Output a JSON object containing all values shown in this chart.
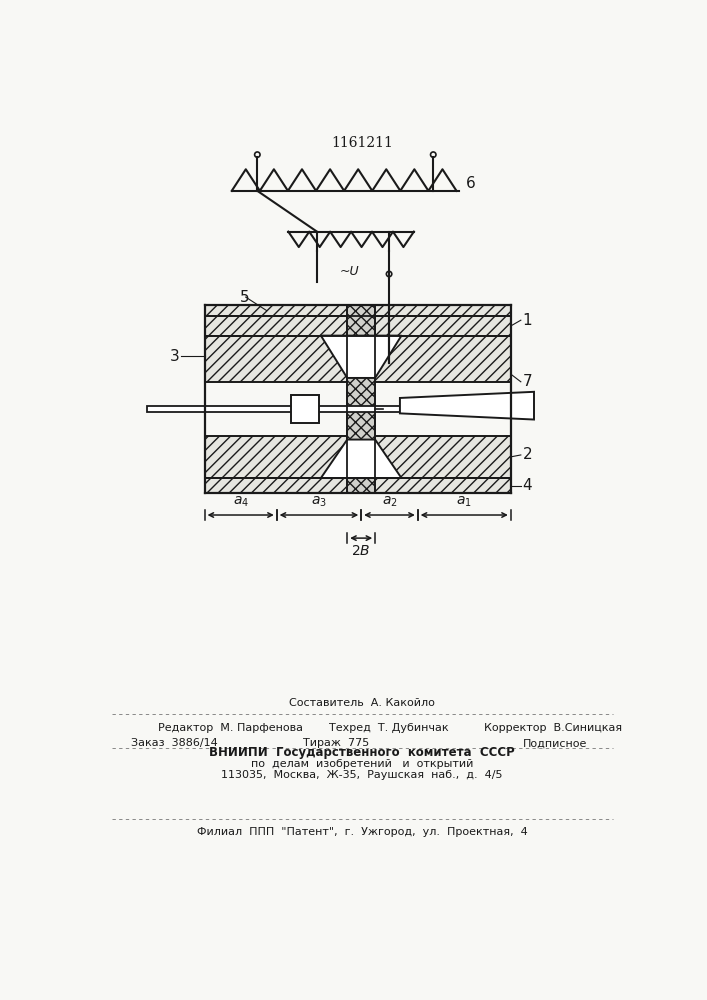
{
  "title": "1161211",
  "bg_color": "#f8f8f5",
  "line_color": "#1a1a1a",
  "fig_w": 7.07,
  "fig_h": 10.0,
  "dpi": 100,
  "footer": {
    "sostavitel": "Составитель  А. Какойло",
    "redaktor": "Редактор  М. Парфенова",
    "tehred": "Техред  Т. Дубинчак",
    "korrektor": "Корректор  В.Синицкая",
    "zakaz": "Заказ  3886/14",
    "tirazh": "Тираж  775",
    "podpisnoe": "Подписное",
    "vnipi1": "ВНИИПИ  Государственного  комитета  СССР",
    "vnipi2": "по  делам  изобретений   и  открытий",
    "vnipi3": "113035,  Москва,  Ж-35,  Раушская  наб.,  д.  4/5",
    "filial": "Филиал  ППП  \"Патент\",  г.  Ужгород,  ул.  Проектная,  4"
  }
}
